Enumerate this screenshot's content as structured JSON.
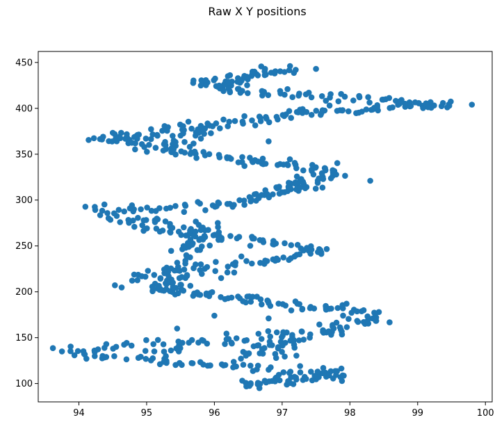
{
  "chart_data": {
    "type": "scatter",
    "title": "Raw X Y positions",
    "xlabel": "",
    "ylabel": "",
    "xlim": [
      93.4,
      100.1
    ],
    "ylim": [
      80,
      462
    ],
    "xticks": [
      94,
      95,
      96,
      97,
      98,
      99,
      100
    ],
    "yticks": [
      100,
      150,
      200,
      250,
      300,
      350,
      400,
      450
    ],
    "grid": false,
    "legend": "none",
    "color": "#1f77b4",
    "segments": [
      {
        "from": [
          96.4,
          98
        ],
        "to": [
          97.9,
          110
        ],
        "count": 48,
        "jitter": [
          0.06,
          3
        ]
      },
      {
        "from": [
          97.9,
          112
        ],
        "to": [
          96.0,
          120
        ],
        "count": 26,
        "jitter": [
          0.05,
          2
        ]
      },
      {
        "from": [
          96.0,
          121
        ],
        "to": [
          94.8,
          126
        ],
        "count": 20,
        "jitter": [
          0.05,
          2
        ]
      },
      {
        "from": [
          95.3,
          123
        ],
        "to": [
          95.5,
          144
        ],
        "count": 10,
        "jitter": [
          0.08,
          2
        ]
      },
      {
        "from": [
          94.5,
          128
        ],
        "to": [
          94.0,
          133
        ],
        "count": 10,
        "jitter": [
          0.05,
          2
        ]
      },
      {
        "from": [
          93.65,
          136
        ],
        "to": [
          95.4,
          145
        ],
        "count": 20,
        "jitter": [
          0.06,
          3
        ]
      },
      {
        "from": [
          95.6,
          146
        ],
        "to": [
          97.9,
          158
        ],
        "count": 36,
        "jitter": [
          0.07,
          3
        ]
      },
      {
        "from": [
          96.5,
          128
        ],
        "to": [
          97.2,
          148
        ],
        "count": 34,
        "jitter": [
          0.18,
          4
        ]
      },
      {
        "from": [
          97.6,
          160
        ],
        "to": [
          98.5,
          170
        ],
        "count": 22,
        "jitter": [
          0.08,
          3
        ]
      },
      {
        "from": [
          98.4,
          175
        ],
        "to": [
          96.0,
          196
        ],
        "count": 52,
        "jitter": [
          0.08,
          3
        ]
      },
      {
        "from": [
          96.0,
          196
        ],
        "to": [
          95.2,
          203
        ],
        "count": 18,
        "jitter": [
          0.06,
          2
        ]
      },
      {
        "from": [
          94.9,
          206
        ],
        "to": [
          95.6,
          218
        ],
        "count": 45,
        "jitter": [
          0.2,
          6
        ]
      },
      {
        "from": [
          95.2,
          221
        ],
        "to": [
          96.8,
          233
        ],
        "count": 28,
        "jitter": [
          0.07,
          3
        ]
      },
      {
        "from": [
          96.8,
          234
        ],
        "to": [
          97.6,
          245
        ],
        "count": 18,
        "jitter": [
          0.06,
          3
        ]
      },
      {
        "from": [
          97.6,
          245
        ],
        "to": [
          95.4,
          265
        ],
        "count": 38,
        "jitter": [
          0.07,
          3
        ]
      },
      {
        "from": [
          95.5,
          230
        ],
        "to": [
          95.8,
          268
        ],
        "count": 30,
        "jitter": [
          0.12,
          5
        ]
      },
      {
        "from": [
          96.1,
          262
        ],
        "to": [
          94.9,
          272
        ],
        "count": 22,
        "jitter": [
          0.08,
          3
        ]
      },
      {
        "from": [
          95.4,
          274
        ],
        "to": [
          94.4,
          282
        ],
        "count": 18,
        "jitter": [
          0.06,
          3
        ]
      },
      {
        "from": [
          94.1,
          288
        ],
        "to": [
          96.3,
          295
        ],
        "count": 34,
        "jitter": [
          0.06,
          3
        ]
      },
      {
        "from": [
          96.3,
          296
        ],
        "to": [
          97.5,
          318
        ],
        "count": 38,
        "jitter": [
          0.07,
          3
        ]
      },
      {
        "from": [
          97.0,
          316
        ],
        "to": [
          97.8,
          330
        ],
        "count": 28,
        "jitter": [
          0.12,
          5
        ]
      },
      {
        "from": [
          97.8,
          330
        ],
        "to": [
          95.7,
          352
        ],
        "count": 46,
        "jitter": [
          0.07,
          3
        ]
      },
      {
        "from": [
          95.6,
          354
        ],
        "to": [
          94.3,
          368
        ],
        "count": 30,
        "jitter": [
          0.07,
          3
        ]
      },
      {
        "from": [
          94.3,
          368
        ],
        "to": [
          96.3,
          385
        ],
        "count": 40,
        "jitter": [
          0.07,
          3
        ]
      },
      {
        "from": [
          95.4,
          358
        ],
        "to": [
          95.9,
          380
        ],
        "count": 24,
        "jitter": [
          0.15,
          5
        ]
      },
      {
        "from": [
          96.4,
          386
        ],
        "to": [
          97.4,
          396
        ],
        "count": 24,
        "jitter": [
          0.06,
          3
        ]
      },
      {
        "from": [
          97.4,
          394
        ],
        "to": [
          99.5,
          406
        ],
        "count": 40,
        "jitter": [
          0.06,
          2
        ]
      },
      {
        "from": [
          99.3,
          404
        ],
        "to": [
          96.3,
          420
        ],
        "count": 46,
        "jitter": [
          0.06,
          3
        ]
      },
      {
        "from": [
          96.3,
          420
        ],
        "to": [
          95.7,
          430
        ],
        "count": 18,
        "jitter": [
          0.06,
          2
        ]
      },
      {
        "from": [
          96.0,
          425
        ],
        "to": [
          97.0,
          443
        ],
        "count": 46,
        "jitter": [
          0.12,
          3
        ]
      }
    ],
    "points": [
      [
        99.8,
        404
      ],
      [
        98.3,
        321
      ],
      [
        97.5,
        443
      ],
      [
        97.2,
        442
      ],
      [
        96.8,
        364
      ],
      [
        96.05,
        275
      ],
      [
        96.1,
        215
      ],
      [
        96.0,
        174
      ],
      [
        96.8,
        171
      ],
      [
        97.7,
        403
      ],
      [
        93.75,
        135
      ],
      [
        94.55,
        140
      ],
      [
        95.1,
        143
      ],
      [
        95.45,
        160
      ],
      [
        97.95,
        187
      ]
    ]
  }
}
